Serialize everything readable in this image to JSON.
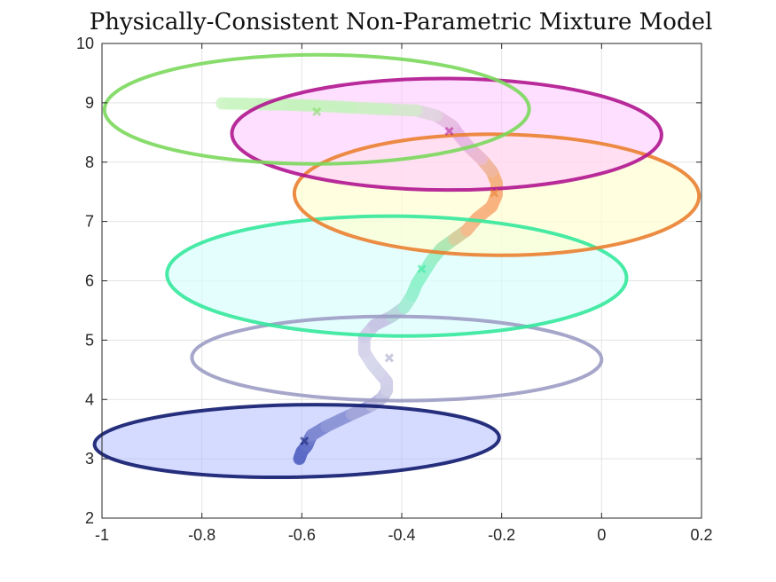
{
  "chart_data": {
    "type": "scatter",
    "title": "Physically-Consistent Non-Parametric Mixture Model",
    "xlabel": "",
    "ylabel": "",
    "xlim": [
      -1,
      0.2
    ],
    "ylim": [
      2,
      10
    ],
    "xticks": [
      "-1",
      "-0.8",
      "-0.6",
      "-0.4",
      "-0.2",
      "0",
      "0.2"
    ],
    "yticks": [
      "2",
      "3",
      "4",
      "5",
      "6",
      "7",
      "8",
      "9",
      "10"
    ],
    "grid": true,
    "components": [
      {
        "center": [
          -0.61,
          3.3
        ],
        "semi_x": 0.405,
        "semi_y": 0.61,
        "tilt_deg": -1.0,
        "edge_color": "#101a6e",
        "fill_color": "#b3bbff",
        "fill_opacity": 0.55,
        "marker": [
          -0.595,
          3.3
        ]
      },
      {
        "center": [
          -0.41,
          4.69
        ],
        "semi_x": 0.41,
        "semi_y": 0.71,
        "tilt_deg": 0.3,
        "edge_color": "#9c9cc4",
        "fill_color": "#ffffff",
        "fill_opacity": 0.0,
        "marker": [
          -0.425,
          4.7
        ]
      },
      {
        "center": [
          -0.41,
          6.08
        ],
        "semi_x": 0.46,
        "semi_y": 1.01,
        "tilt_deg": 0.5,
        "edge_color": "#34e89c",
        "fill_color": "#d9fdfc",
        "fill_opacity": 0.7,
        "marker": [
          -0.36,
          6.2
        ]
      },
      {
        "center": [
          -0.21,
          7.45
        ],
        "semi_x": 0.405,
        "semi_y": 1.02,
        "tilt_deg": 0.4,
        "edge_color": "#ea8030",
        "fill_color": "#ffffd2",
        "fill_opacity": 0.7,
        "marker": [
          -0.215,
          7.48
        ]
      },
      {
        "center": [
          -0.31,
          8.47
        ],
        "semi_x": 0.43,
        "semi_y": 0.94,
        "tilt_deg": 0.2,
        "edge_color": "#b0158f",
        "fill_color": "#ffc4ff",
        "fill_opacity": 0.55,
        "marker": [
          -0.305,
          8.52
        ]
      },
      {
        "center": [
          -0.57,
          8.89
        ],
        "semi_x": 0.425,
        "semi_y": 0.92,
        "tilt_deg": -0.1,
        "edge_color": "#7bd85c",
        "fill_color": "#ffffff",
        "fill_opacity": 0.0,
        "marker": [
          -0.57,
          8.85
        ]
      }
    ],
    "trajectory": {
      "x": [
        -0.605,
        -0.6,
        -0.59,
        -0.585,
        -0.58,
        -0.55,
        -0.5,
        -0.46,
        -0.44,
        -0.43,
        -0.43,
        -0.445,
        -0.46,
        -0.475,
        -0.475,
        -0.455,
        -0.42,
        -0.395,
        -0.38,
        -0.37,
        -0.355,
        -0.34,
        -0.32,
        -0.295,
        -0.27,
        -0.25,
        -0.22,
        -0.21,
        -0.21,
        -0.22,
        -0.24,
        -0.265,
        -0.285,
        -0.3,
        -0.33,
        -0.37,
        -0.43,
        -0.5,
        -0.57,
        -0.64,
        -0.7,
        -0.76
      ],
      "y": [
        3.0,
        3.12,
        3.22,
        3.32,
        3.4,
        3.55,
        3.75,
        3.9,
        4.02,
        4.15,
        4.3,
        4.45,
        4.6,
        4.8,
        5.05,
        5.25,
        5.4,
        5.55,
        5.75,
        5.95,
        6.15,
        6.35,
        6.55,
        6.7,
        6.85,
        7.05,
        7.25,
        7.45,
        7.65,
        7.85,
        8.05,
        8.25,
        8.45,
        8.62,
        8.78,
        8.87,
        8.89,
        8.92,
        8.95,
        8.97,
        8.98,
        8.99
      ],
      "colors": [
        "#5a6ac5",
        "#5a6ac5",
        "#6271c8",
        "#6e7bcc",
        "#7f8ad2",
        "#8d97d7",
        "#a2a6d9",
        "#b8b9df",
        "#c6c6e4",
        "#cfcfe8",
        "#d2d0ea",
        "#d6d6eb",
        "#d8d8ec",
        "#d6d4ea",
        "#cfcde8",
        "#c7c5e4",
        "#b8d8de",
        "#a6ecd6",
        "#96f0d0",
        "#90f2cd",
        "#94f2ce",
        "#9cefc8",
        "#b2e6b4",
        "#d6d0a0",
        "#f3bb8c",
        "#f8b483",
        "#f9b37f",
        "#f8b27f",
        "#f5b384",
        "#f0b7a0",
        "#ebbad0",
        "#e7b9e2",
        "#e6b5e6",
        "#e6bfe3",
        "#e2d4df",
        "#d6e6cf",
        "#cdeec4",
        "#c8f1bf",
        "#c6f2bd",
        "#c8f3bf",
        "#cbf4c3",
        "#cff5c7"
      ]
    }
  }
}
